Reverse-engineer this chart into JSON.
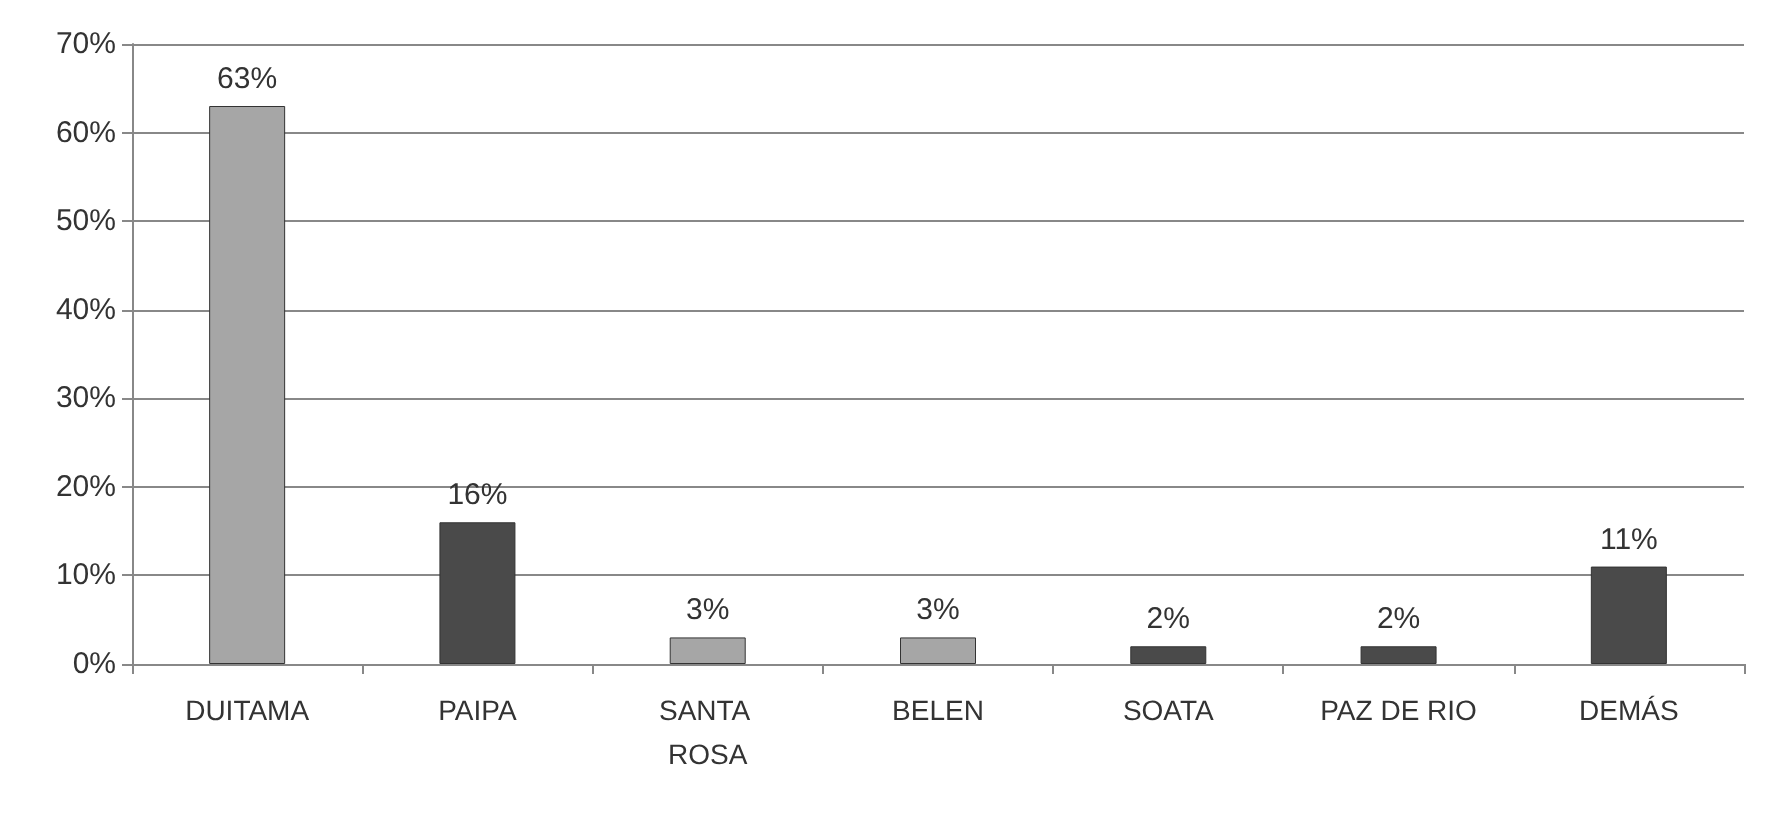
{
  "chart_data": {
    "type": "bar",
    "categories": [
      "DUITAMA",
      "PAIPA",
      "SANTA ROSA",
      "BELEN",
      "SOATA",
      "PAZ DE RIO",
      "DEMÁS"
    ],
    "values": [
      63,
      16,
      3,
      3,
      2,
      2,
      11
    ],
    "colors": [
      "#a6a6a6",
      "#4a4a4a",
      "#a6a6a6",
      "#a6a6a6",
      "#4a4a4a",
      "#4a4a4a",
      "#4a4a4a"
    ],
    "value_labels": [
      "63%",
      "16%",
      "3%",
      "3%",
      "2%",
      "2%",
      "11%"
    ],
    "ylim": [
      0,
      70
    ],
    "yticks": [
      {
        "value": 0,
        "label": "0%"
      },
      {
        "value": 10,
        "label": "10%"
      },
      {
        "value": 20,
        "label": "20%"
      },
      {
        "value": 30,
        "label": "30%"
      },
      {
        "value": 40,
        "label": "40%"
      },
      {
        "value": 50,
        "label": "50%"
      },
      {
        "value": 60,
        "label": "60%"
      },
      {
        "value": 70,
        "label": "70%"
      }
    ],
    "grid": true
  }
}
